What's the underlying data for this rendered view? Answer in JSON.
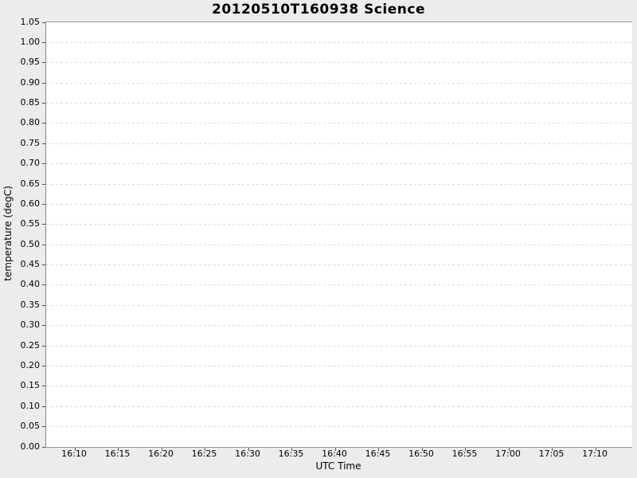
{
  "chart_data": {
    "type": "line",
    "title": "20120510T160938 Science",
    "xlabel": "UTC Time",
    "ylabel": "temperature (degC)",
    "x_ticks": [
      "16:10",
      "16:15",
      "16:20",
      "16:25",
      "16:30",
      "16:35",
      "16:40",
      "16:45",
      "16:50",
      "16:55",
      "17:00",
      "17:05",
      "17:10"
    ],
    "y_ticks": [
      "0.00",
      "0.05",
      "0.10",
      "0.15",
      "0.20",
      "0.25",
      "0.30",
      "0.35",
      "0.40",
      "0.45",
      "0.50",
      "0.55",
      "0.60",
      "0.65",
      "0.70",
      "0.75",
      "0.80",
      "0.85",
      "0.90",
      "0.95",
      "1.00",
      "1.05"
    ],
    "ylim": [
      0.0,
      1.05
    ],
    "series": [],
    "legend": null,
    "grid": "horizontal-dashed-only"
  },
  "colors": {
    "figure_background": "#ececec",
    "plot_background": "#ffffff",
    "spine": "#8f8f8f",
    "gridline": "#d9d9d9",
    "tick": "#555555",
    "text": "#000000"
  }
}
